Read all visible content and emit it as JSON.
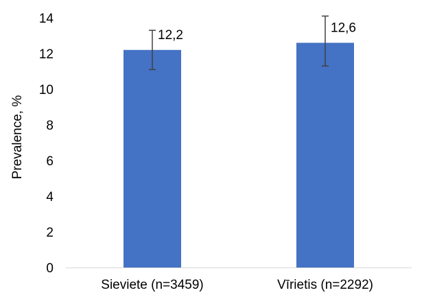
{
  "chart_data": {
    "type": "bar",
    "categories": [
      "Sieviete (n=3459)",
      "Vīrietis (n=2292)"
    ],
    "values": [
      12.2,
      12.6
    ],
    "value_labels": [
      "12,2",
      "12,6"
    ],
    "error_low": [
      11.1,
      11.3
    ],
    "error_high": [
      13.3,
      14.1
    ],
    "ylabel": "Prevalence, %",
    "xlabel": "",
    "ylim": [
      0,
      14
    ],
    "yticks": [
      0,
      2,
      4,
      6,
      8,
      10,
      12,
      14
    ],
    "grid": false,
    "legend": "none",
    "bar_color": "#4472C4",
    "error_color": "#404040",
    "axis_color": "#D9D9D9"
  }
}
